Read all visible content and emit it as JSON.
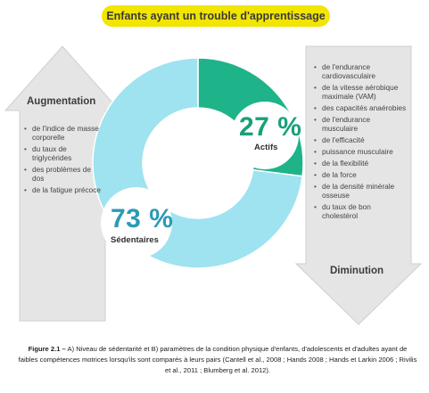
{
  "header": {
    "title": "Enfants ayant un trouble d'apprentissage"
  },
  "augmentation": {
    "label": "Augmentation",
    "items": [
      "de l'indice de masse corporelle",
      "du taux de triglycérides",
      "des problèmes de dos",
      "de la fatigue précoce"
    ]
  },
  "diminution": {
    "label": "Diminution",
    "items": [
      "de l'endurance cardiovasculaire",
      "de la vitesse aérobique maximale (VAM)",
      "des capacités anaérobies",
      "de l'endurance musculaire",
      "de l'efficacité",
      "puissance musculaire",
      "de la flexibilité",
      "de la force",
      "de la densité minérale osseuse",
      "du taux de bon cholestérol"
    ]
  },
  "chart_data": {
    "type": "pie",
    "categories": [
      "Actifs",
      "Sédentaires"
    ],
    "values": [
      27,
      73
    ],
    "labels": [
      "27 %",
      "73 %"
    ],
    "colors": [
      "#1fb38a",
      "#9ee3ef"
    ]
  },
  "caption": {
    "prefix": "Figure 2.1 –",
    "text": "A) Niveau de sédentarité et B) paramètres de la condition physique d'enfants, d'adolescents et d'adultes ayant de faibles compétences motrices lorsqu'ils sont comparés à leurs pairs (Cantell et al., 2008 ; Hands 2008 ; Hands et Larkin 2006 ; Rivilis et al., 2011 ; Blumberg et al. 2012)."
  }
}
